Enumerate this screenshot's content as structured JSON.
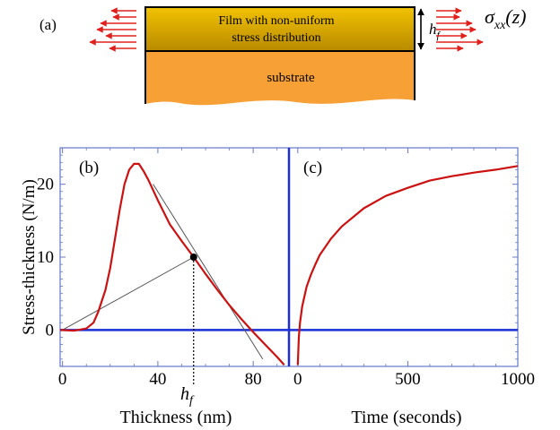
{
  "figure": {
    "panel_a": {
      "label": "(a)",
      "film_text_line1": "Film with non-uniform",
      "film_text_line2": "stress distribution",
      "thickness_symbol": "h",
      "thickness_subscript": "f",
      "substrate_text": "substrate",
      "stress_symbol": "σ",
      "stress_subscript": "xx",
      "stress_argument": "(z)",
      "colors": {
        "film_top": "#f2c200",
        "film_bottom": "#b88a00",
        "substrate": "#f7a035",
        "arrows": "#e0201b"
      }
    },
    "panel_b_label": "(b)",
    "panel_c_label": "(c)",
    "hf_label": "h",
    "hf_subscript": "f"
  },
  "chart_data": [
    {
      "type": "line",
      "panel": "(b)",
      "xlabel": "Thickness (nm)",
      "ylabel": "Stress-thickness  (N/m)",
      "xlim": [
        -1,
        95
      ],
      "ylim": [
        -5,
        25
      ],
      "x_ticks": [
        0,
        40,
        80
      ],
      "y_ticks": [
        0,
        10,
        20
      ],
      "series": [
        {
          "color": "#cc1111",
          "x": [
            -1,
            5,
            10,
            13,
            15,
            18,
            20,
            22,
            24,
            26,
            28,
            30,
            32,
            34,
            36,
            40,
            45,
            50,
            55,
            60,
            65,
            70,
            75,
            80,
            85,
            90,
            93
          ],
          "y": [
            0,
            -0.1,
            0.2,
            1.0,
            2.5,
            5.5,
            8.5,
            12.5,
            16.5,
            20.0,
            22.0,
            22.8,
            22.8,
            21.8,
            20.6,
            17.8,
            14.5,
            12.2,
            10.0,
            7.7,
            5.5,
            3.4,
            1.5,
            -0.3,
            -2.0,
            -3.7,
            -4.8
          ]
        }
      ],
      "reference_lines": [
        {
          "color": "#555555",
          "x": [
            0,
            55
          ],
          "y": [
            0,
            10
          ]
        },
        {
          "color": "#555555",
          "x": [
            38,
            84
          ],
          "y": [
            20,
            -4
          ]
        }
      ],
      "marked_point": {
        "x": 55,
        "y": 10,
        "color": "#000000"
      },
      "dotted_drop_x": 55,
      "zero_line_color": "#1a2fd6"
    },
    {
      "type": "line",
      "panel": "(c)",
      "xlabel": "Time (seconds)",
      "xlim": [
        -40,
        1000
      ],
      "ylim": [
        -5,
        25
      ],
      "x_ticks": [
        0,
        500,
        1000
      ],
      "series": [
        {
          "color": "#cc1111",
          "x": [
            0,
            5,
            10,
            20,
            40,
            60,
            80,
            100,
            150,
            200,
            300,
            400,
            500,
            600,
            700,
            800,
            900,
            1000
          ],
          "y": [
            -4.8,
            -1.0,
            1.0,
            3.2,
            5.9,
            7.6,
            9.0,
            10.3,
            12.5,
            14.2,
            16.7,
            18.4,
            19.5,
            20.5,
            21.1,
            21.6,
            22.0,
            22.5
          ]
        }
      ],
      "zero_line_color": "#1a2fd6",
      "divider_color": "#1a2fd6"
    }
  ]
}
